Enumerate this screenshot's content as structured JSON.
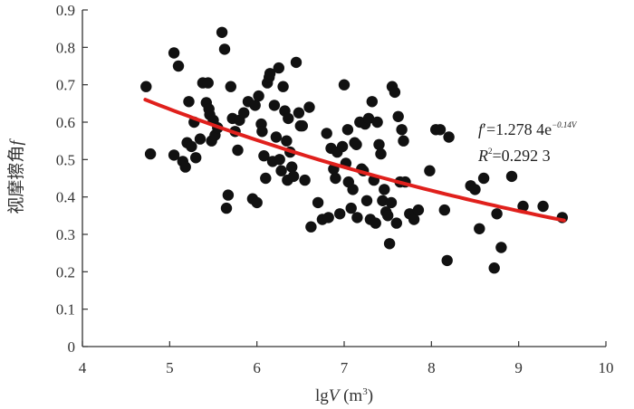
{
  "chart_data": {
    "type": "scatter",
    "xlabel": {
      "prefix": "lg",
      "var": "V",
      "paren_open": " (m",
      "sup": "3",
      "paren_close": ")"
    },
    "ylabel": {
      "text": "视摩擦角",
      "var": "f"
    },
    "xlim": [
      4,
      10
    ],
    "ylim": [
      0,
      0.9
    ],
    "x_ticks": [
      "4",
      "5",
      "6",
      "7",
      "8",
      "9",
      "10"
    ],
    "y_ticks": [
      "0",
      "0.1",
      "0.2",
      "0.3",
      "0.4",
      "0.5",
      "0.6",
      "0.7",
      "0.8",
      "0.9"
    ],
    "grid": false,
    "annotation": {
      "eq_lhs": "f",
      "eq_prime": "′",
      "eq_value": "=1.278 4e",
      "eq_exp": "−0.14V",
      "r2_lhs": "R",
      "r2_sup": "2",
      "r2_value": "=0.292 3"
    },
    "fit": {
      "a": 1.2784,
      "b": -0.14,
      "x_range": [
        4.72,
        9.52
      ],
      "color": "#e0201c"
    },
    "point_color": "#111111",
    "points": [
      [
        4.73,
        0.695
      ],
      [
        4.78,
        0.515
      ],
      [
        5.05,
        0.785
      ],
      [
        5.05,
        0.512
      ],
      [
        5.1,
        0.75
      ],
      [
        5.15,
        0.495
      ],
      [
        5.18,
        0.48
      ],
      [
        5.2,
        0.545
      ],
      [
        5.22,
        0.655
      ],
      [
        5.25,
        0.535
      ],
      [
        5.28,
        0.6
      ],
      [
        5.3,
        0.505
      ],
      [
        5.35,
        0.555
      ],
      [
        5.38,
        0.705
      ],
      [
        5.42,
        0.652
      ],
      [
        5.44,
        0.705
      ],
      [
        5.45,
        0.635
      ],
      [
        5.46,
        0.62
      ],
      [
        5.48,
        0.55
      ],
      [
        5.5,
        0.605
      ],
      [
        5.52,
        0.565
      ],
      [
        5.55,
        0.585
      ],
      [
        5.6,
        0.84
      ],
      [
        5.63,
        0.795
      ],
      [
        5.65,
        0.37
      ],
      [
        5.67,
        0.405
      ],
      [
        5.7,
        0.695
      ],
      [
        5.72,
        0.61
      ],
      [
        5.75,
        0.575
      ],
      [
        5.78,
        0.525
      ],
      [
        5.8,
        0.605
      ],
      [
        5.85,
        0.625
      ],
      [
        5.9,
        0.655
      ],
      [
        5.95,
        0.395
      ],
      [
        5.98,
        0.645
      ],
      [
        6.0,
        0.385
      ],
      [
        6.02,
        0.67
      ],
      [
        6.05,
        0.595
      ],
      [
        6.06,
        0.575
      ],
      [
        6.08,
        0.51
      ],
      [
        6.1,
        0.45
      ],
      [
        6.12,
        0.705
      ],
      [
        6.14,
        0.72
      ],
      [
        6.15,
        0.73
      ],
      [
        6.18,
        0.495
      ],
      [
        6.2,
        0.645
      ],
      [
        6.22,
        0.56
      ],
      [
        6.25,
        0.745
      ],
      [
        6.26,
        0.5
      ],
      [
        6.28,
        0.47
      ],
      [
        6.3,
        0.695
      ],
      [
        6.32,
        0.63
      ],
      [
        6.34,
        0.55
      ],
      [
        6.35,
        0.445
      ],
      [
        6.36,
        0.61
      ],
      [
        6.38,
        0.52
      ],
      [
        6.4,
        0.48
      ],
      [
        6.42,
        0.455
      ],
      [
        6.45,
        0.76
      ],
      [
        6.48,
        0.625
      ],
      [
        6.5,
        0.59
      ],
      [
        6.52,
        0.59
      ],
      [
        6.55,
        0.445
      ],
      [
        6.6,
        0.64
      ],
      [
        6.62,
        0.32
      ],
      [
        6.7,
        0.385
      ],
      [
        6.75,
        0.34
      ],
      [
        6.8,
        0.57
      ],
      [
        6.82,
        0.345
      ],
      [
        6.85,
        0.53
      ],
      [
        6.88,
        0.475
      ],
      [
        6.9,
        0.45
      ],
      [
        6.92,
        0.52
      ],
      [
        6.95,
        0.355
      ],
      [
        6.98,
        0.535
      ],
      [
        7.0,
        0.7
      ],
      [
        7.02,
        0.49
      ],
      [
        7.04,
        0.58
      ],
      [
        7.05,
        0.44
      ],
      [
        7.08,
        0.37
      ],
      [
        7.1,
        0.42
      ],
      [
        7.12,
        0.545
      ],
      [
        7.14,
        0.54
      ],
      [
        7.15,
        0.345
      ],
      [
        7.18,
        0.6
      ],
      [
        7.2,
        0.475
      ],
      [
        7.22,
        0.47
      ],
      [
        7.24,
        0.595
      ],
      [
        7.26,
        0.39
      ],
      [
        7.28,
        0.61
      ],
      [
        7.3,
        0.34
      ],
      [
        7.32,
        0.655
      ],
      [
        7.34,
        0.445
      ],
      [
        7.36,
        0.33
      ],
      [
        7.38,
        0.6
      ],
      [
        7.4,
        0.54
      ],
      [
        7.42,
        0.515
      ],
      [
        7.44,
        0.39
      ],
      [
        7.46,
        0.42
      ],
      [
        7.48,
        0.36
      ],
      [
        7.5,
        0.35
      ],
      [
        7.52,
        0.275
      ],
      [
        7.54,
        0.385
      ],
      [
        7.55,
        0.695
      ],
      [
        7.58,
        0.68
      ],
      [
        7.6,
        0.33
      ],
      [
        7.62,
        0.615
      ],
      [
        7.64,
        0.44
      ],
      [
        7.66,
        0.58
      ],
      [
        7.68,
        0.55
      ],
      [
        7.7,
        0.44
      ],
      [
        7.75,
        0.355
      ],
      [
        7.8,
        0.34
      ],
      [
        7.85,
        0.365
      ],
      [
        7.98,
        0.47
      ],
      [
        8.05,
        0.58
      ],
      [
        8.1,
        0.58
      ],
      [
        8.15,
        0.365
      ],
      [
        8.18,
        0.23
      ],
      [
        8.2,
        0.56
      ],
      [
        8.45,
        0.43
      ],
      [
        8.5,
        0.42
      ],
      [
        8.55,
        0.315
      ],
      [
        8.6,
        0.45
      ],
      [
        8.72,
        0.21
      ],
      [
        8.75,
        0.355
      ],
      [
        8.8,
        0.265
      ],
      [
        8.92,
        0.455
      ],
      [
        9.05,
        0.375
      ],
      [
        9.28,
        0.375
      ],
      [
        9.5,
        0.345
      ]
    ]
  }
}
